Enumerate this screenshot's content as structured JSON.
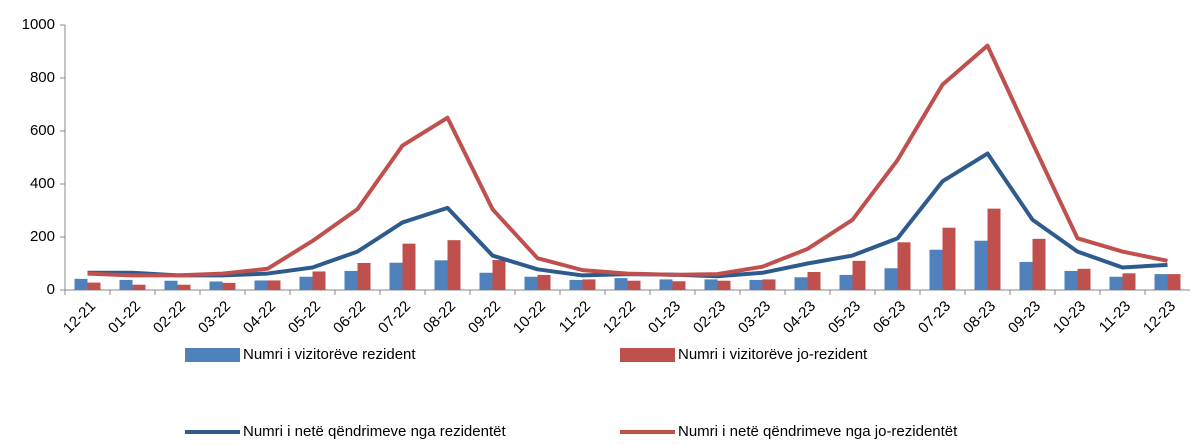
{
  "chart_data": {
    "type": "bar_line",
    "categories": [
      "12-21",
      "01-22",
      "02-22",
      "03-22",
      "04-22",
      "05-22",
      "06-22",
      "07-22",
      "08-22",
      "09-22",
      "10-22",
      "11-22",
      "12-22",
      "01-23",
      "02-23",
      "03-23",
      "04-23",
      "05-23",
      "06-23",
      "07-23",
      "08-23",
      "09-23",
      "10-23",
      "11-23",
      "12-23"
    ],
    "series": [
      {
        "name": "Numri i vizitorëve rezident",
        "kind": "bar",
        "color": "#4f81bd",
        "values": [
          42,
          38,
          35,
          32,
          36,
          50,
          72,
          103,
          112,
          65,
          50,
          38,
          45,
          40,
          40,
          38,
          48,
          57,
          82,
          152,
          186,
          106,
          72,
          50,
          60
        ]
      },
      {
        "name": "Numri i vizitorëve jo-rezident",
        "kind": "bar",
        "color": "#c0504d",
        "values": [
          28,
          20,
          20,
          27,
          36,
          70,
          102,
          175,
          188,
          113,
          57,
          40,
          35,
          33,
          35,
          40,
          68,
          110,
          180,
          235,
          307,
          193,
          80,
          63,
          60
        ]
      },
      {
        "name": "Numri i netë qëndrimeve nga rezidentët",
        "kind": "line",
        "color": "#2e5b8e",
        "values": [
          65,
          65,
          55,
          55,
          62,
          85,
          145,
          255,
          310,
          130,
          78,
          55,
          60,
          58,
          52,
          65,
          100,
          130,
          195,
          410,
          515,
          265,
          145,
          85,
          95
        ]
      },
      {
        "name": "Numri i netë qëndrimeve nga jo-rezidentët",
        "kind": "line",
        "color": "#c0504d",
        "values": [
          62,
          55,
          55,
          62,
          80,
          185,
          305,
          545,
          650,
          305,
          120,
          75,
          62,
          57,
          60,
          88,
          155,
          265,
          490,
          775,
          922,
          555,
          195,
          145,
          110
        ]
      }
    ],
    "ylim": [
      0,
      1000
    ],
    "yticks": [
      0,
      200,
      400,
      600,
      800,
      1000
    ],
    "grid": false
  }
}
